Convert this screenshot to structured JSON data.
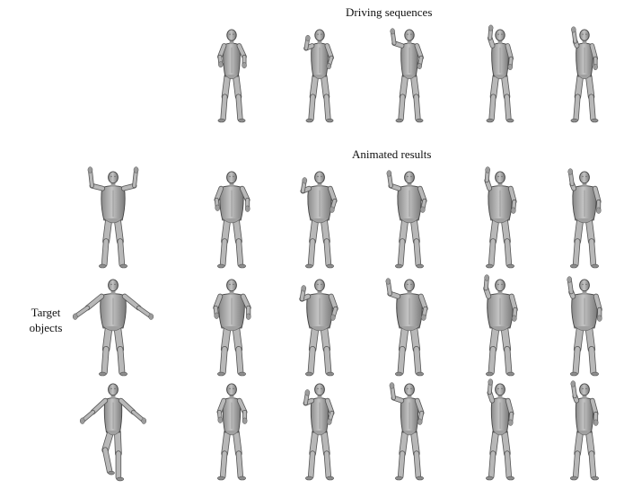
{
  "figure": {
    "heading_driving": "Driving sequences",
    "heading_animated": "Animated results",
    "row_label": "Target\nobjects",
    "body_color": "#a9a9a9",
    "body_shadow": "#6f6f6f",
    "body_outline": "#444444",
    "driving_poses": [
      "arm-raised-1",
      "arm-raised-2",
      "arm-raised-3",
      "arm-raised-4",
      "arm-raised-5"
    ],
    "target_poses": [
      "arms-up-heavy",
      "arms-spread-heavy",
      "arms-spread-slim"
    ],
    "rows": [
      {
        "name": "driving",
        "cells": [
          "arm-raised-1",
          "arm-raised-2",
          "arm-raised-3",
          "arm-raised-4",
          "arm-raised-5"
        ]
      },
      {
        "name": "result-heavy-1",
        "cells": [
          "arm-raised-1",
          "arm-raised-2",
          "arm-raised-3",
          "arm-raised-4",
          "arm-raised-5"
        ]
      },
      {
        "name": "result-heavy-2",
        "cells": [
          "arm-raised-1",
          "arm-raised-2",
          "arm-raised-3",
          "arm-raised-4",
          "arm-raised-5"
        ]
      },
      {
        "name": "result-slim",
        "cells": [
          "arm-raised-1",
          "arm-raised-2",
          "arm-raised-3",
          "arm-raised-4",
          "arm-raised-5"
        ]
      }
    ]
  }
}
